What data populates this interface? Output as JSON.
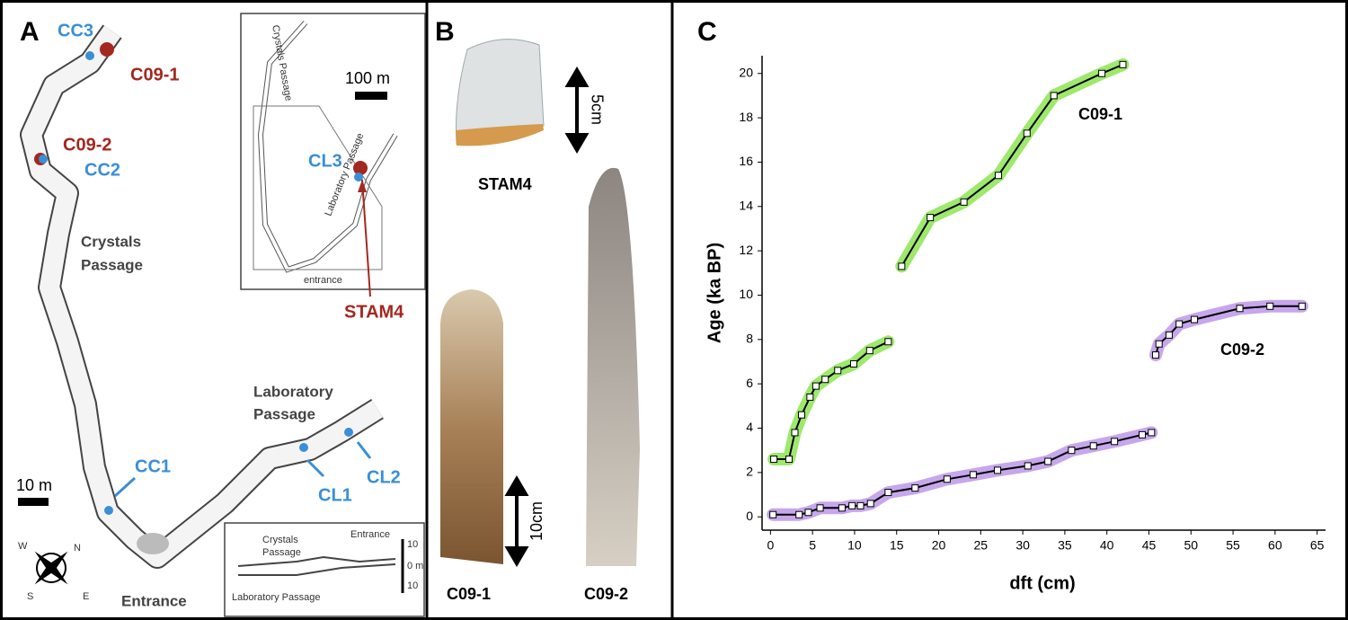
{
  "panel_a": {
    "letter": "A",
    "cc3": "CC3",
    "c09_1": "C09-1",
    "c09_2": "C09-2",
    "cc2": "CC2",
    "crystals_passage": [
      "Crystals",
      "Passage"
    ],
    "laboratory_passage": [
      "Laboratory",
      "Passage"
    ],
    "cc1": "CC1",
    "cl1": "CL1",
    "cl2": "CL2",
    "scale": "10 m",
    "entrance": "Entrance",
    "compass": {
      "w": "W",
      "n": "N",
      "s": "S",
      "e": "E"
    },
    "inset_map": {
      "scale": "100 m",
      "crystals_passage": "Crystals Passage",
      "laboratory_passage": "Laboratory Passage",
      "cl3": "CL3",
      "entrance": "entrance",
      "stam4": "STAM4"
    },
    "section": {
      "crystals_passage": [
        "Crystals",
        "Passage"
      ],
      "entrance": "Entrance",
      "ticks": [
        "10",
        "0 m",
        "10"
      ],
      "laboratory_passage": "Laboratory Passage"
    }
  },
  "panel_b": {
    "letter": "B",
    "scale_small": "5cm",
    "stam4": "STAM4",
    "scale_large": "10cm",
    "c09_1": "C09-1",
    "c09_2": "C09-2"
  },
  "chart_data": {
    "panel_letter": "C",
    "type": "line",
    "x_label": "dft (cm)",
    "y_label": "Age (ka BP)",
    "xlim": [
      -1,
      66
    ],
    "xticks": [
      0,
      5,
      10,
      15,
      20,
      25,
      30,
      35,
      40,
      45,
      50,
      55,
      60,
      65
    ],
    "ylim": [
      -0.6,
      20.8
    ],
    "yticks": [
      0,
      2,
      4,
      6,
      8,
      10,
      12,
      14,
      16,
      18,
      20
    ],
    "series": [
      {
        "name": "C09-1",
        "color": "#7ee23c",
        "x": [
          0.4,
          2.2,
          2.9,
          3.7,
          4.7,
          5.4,
          6.5,
          8.0,
          9.9,
          11.8,
          14.0,
          null,
          15.6,
          19.0,
          23.0,
          27.1,
          30.5,
          33.7,
          39.4,
          41.9
        ],
        "values": [
          2.6,
          2.6,
          3.8,
          4.6,
          5.4,
          5.9,
          6.2,
          6.6,
          6.9,
          7.5,
          7.9,
          null,
          11.3,
          13.5,
          14.2,
          15.4,
          17.3,
          19.0,
          20.0,
          20.4
        ]
      },
      {
        "name": "C09-2",
        "color": "#b48ae6",
        "x": [
          0.3,
          3.4,
          4.5,
          5.9,
          8.5,
          9.7,
          10.7,
          11.9,
          14.0,
          17.2,
          21.0,
          24.1,
          27.0,
          30.6,
          33.0,
          35.8,
          38.4,
          40.9,
          44.2,
          45.3,
          null,
          45.8,
          46.2,
          47.4,
          48.6,
          50.4,
          55.8,
          59.4,
          63.2
        ],
        "values": [
          0.1,
          0.1,
          0.2,
          0.4,
          0.4,
          0.5,
          0.5,
          0.6,
          1.1,
          1.3,
          1.7,
          1.9,
          2.1,
          2.3,
          2.5,
          3.0,
          3.2,
          3.4,
          3.7,
          3.8,
          null,
          7.3,
          7.8,
          8.2,
          8.7,
          8.9,
          9.4,
          9.5,
          9.5
        ]
      }
    ]
  }
}
